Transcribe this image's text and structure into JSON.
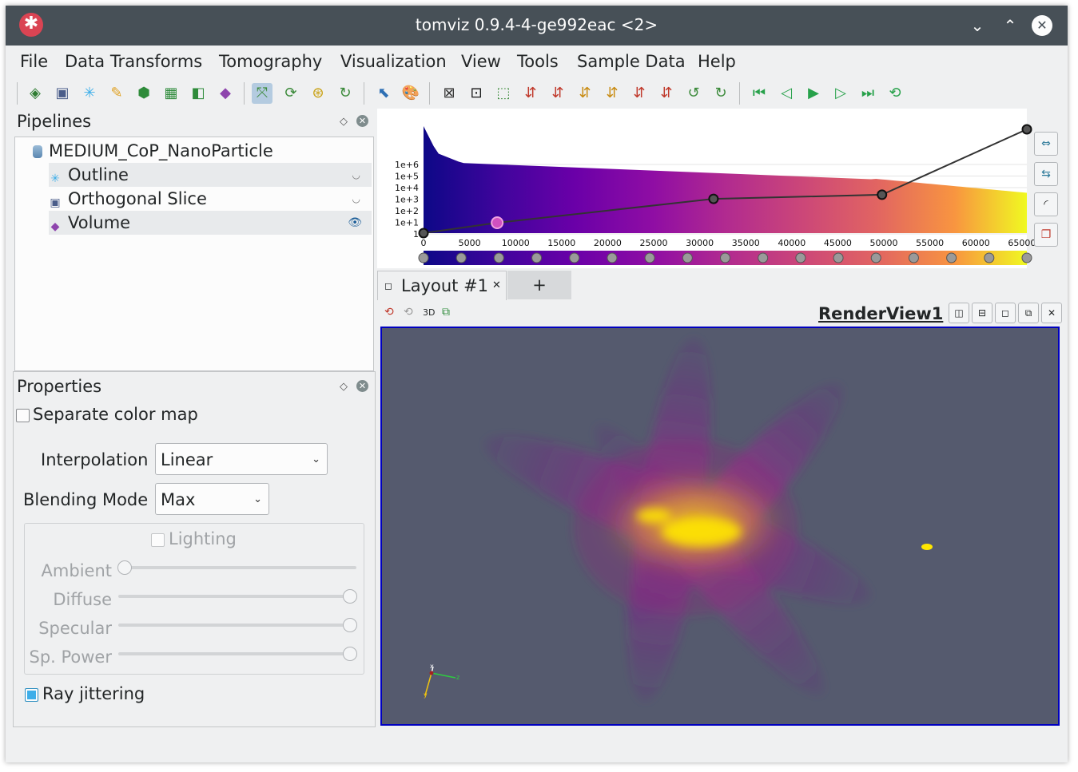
{
  "window": {
    "title": "tomviz 0.9.4-4-ge992eac <2>"
  },
  "menu": [
    "File",
    "Data Transforms",
    "Tomography",
    "Visualization",
    "View",
    "Tools",
    "Sample Data",
    "Help"
  ],
  "pipelines": {
    "title": "Pipelines",
    "data_source": "MEDIUM_CoP_NanoParticle",
    "modules": [
      {
        "label": "Outline",
        "icon": "outline-icon",
        "visible": false
      },
      {
        "label": "Orthogonal Slice",
        "icon": "slice-icon",
        "visible": false
      },
      {
        "label": "Volume",
        "icon": "volume-icon",
        "visible": true
      }
    ]
  },
  "properties": {
    "title": "Properties",
    "separate_color_map": {
      "label": "Separate color map",
      "checked": false
    },
    "interpolation": {
      "label": "Interpolation",
      "value": "Linear"
    },
    "blending": {
      "label": "Blending Mode",
      "value": "Max"
    },
    "lighting": {
      "label": "Lighting",
      "checked": false
    },
    "sliders": [
      {
        "label": "Ambient",
        "value": 0.0
      },
      {
        "label": "Diffuse",
        "value": 1.0
      },
      {
        "label": "Specular",
        "value": 1.0
      },
      {
        "label": "Sp. Power",
        "value": 1.0
      }
    ],
    "ray_jittering": {
      "label": "Ray jittering",
      "checked": true
    }
  },
  "histogram": {
    "y_ticks": [
      "1e+6",
      "1e+5",
      "1e+4",
      "1e+3",
      "1e+2",
      "1e+1",
      "1"
    ],
    "x_ticks": [
      "0",
      "5000",
      "10000",
      "15000",
      "20000",
      "25000",
      "30000",
      "35000",
      "40000",
      "45000",
      "50000",
      "55000",
      "60000",
      "65000"
    ],
    "x_range": [
      0,
      65535
    ],
    "opacity_points": [
      [
        0,
        0.0
      ],
      [
        8000,
        0.1
      ],
      [
        31500,
        0.33
      ],
      [
        49800,
        0.37
      ],
      [
        65535,
        1.0
      ]
    ],
    "colormap": "plasma"
  },
  "layout": {
    "tab_label": "Layout #1",
    "add_tab": "+",
    "view_name": "RenderView1",
    "mode_3d": "3D"
  },
  "axes": {
    "x": "x",
    "y": "y",
    "z": "z"
  },
  "colors": {
    "titlebar": "#475057",
    "accent": "#3daee9",
    "render_bg": "#555a6e"
  }
}
